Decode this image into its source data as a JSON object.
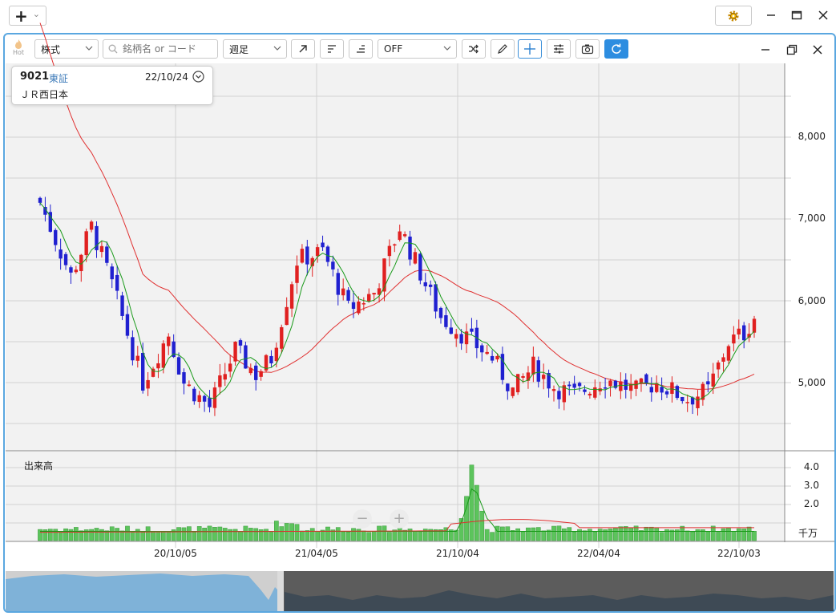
{
  "window": {
    "add_symbol": "+",
    "add_chevron": "⌄"
  },
  "toolbar": {
    "hot_label": "Hot",
    "market_type": "株式",
    "search_placeholder": "銘柄名 or コード",
    "period": "週足",
    "indicator": "OFF"
  },
  "stock": {
    "code": "9021",
    "exchange": "東証",
    "date": "22/10/24",
    "name": "ＪＲ西日本"
  },
  "chart": {
    "price_ticks": [
      "8,000",
      "7,000",
      "6,000",
      "5,000"
    ],
    "volume_label": "出来高",
    "volume_ticks": [
      "4.0",
      "3.0",
      "2.0"
    ],
    "volume_unit": "千万",
    "x_ticks": [
      "20/10/05",
      "21/04/05",
      "21/10/04",
      "22/04/04",
      "22/10/03"
    ],
    "zoom_out": "−",
    "zoom_in": "+",
    "colors": {
      "up": "#e02020",
      "down": "#2020d0",
      "ma_short": "#1a9a1a",
      "ma_long": "#e03030",
      "volume": "#5cc45c",
      "grid": "#d4d4d4"
    }
  }
}
